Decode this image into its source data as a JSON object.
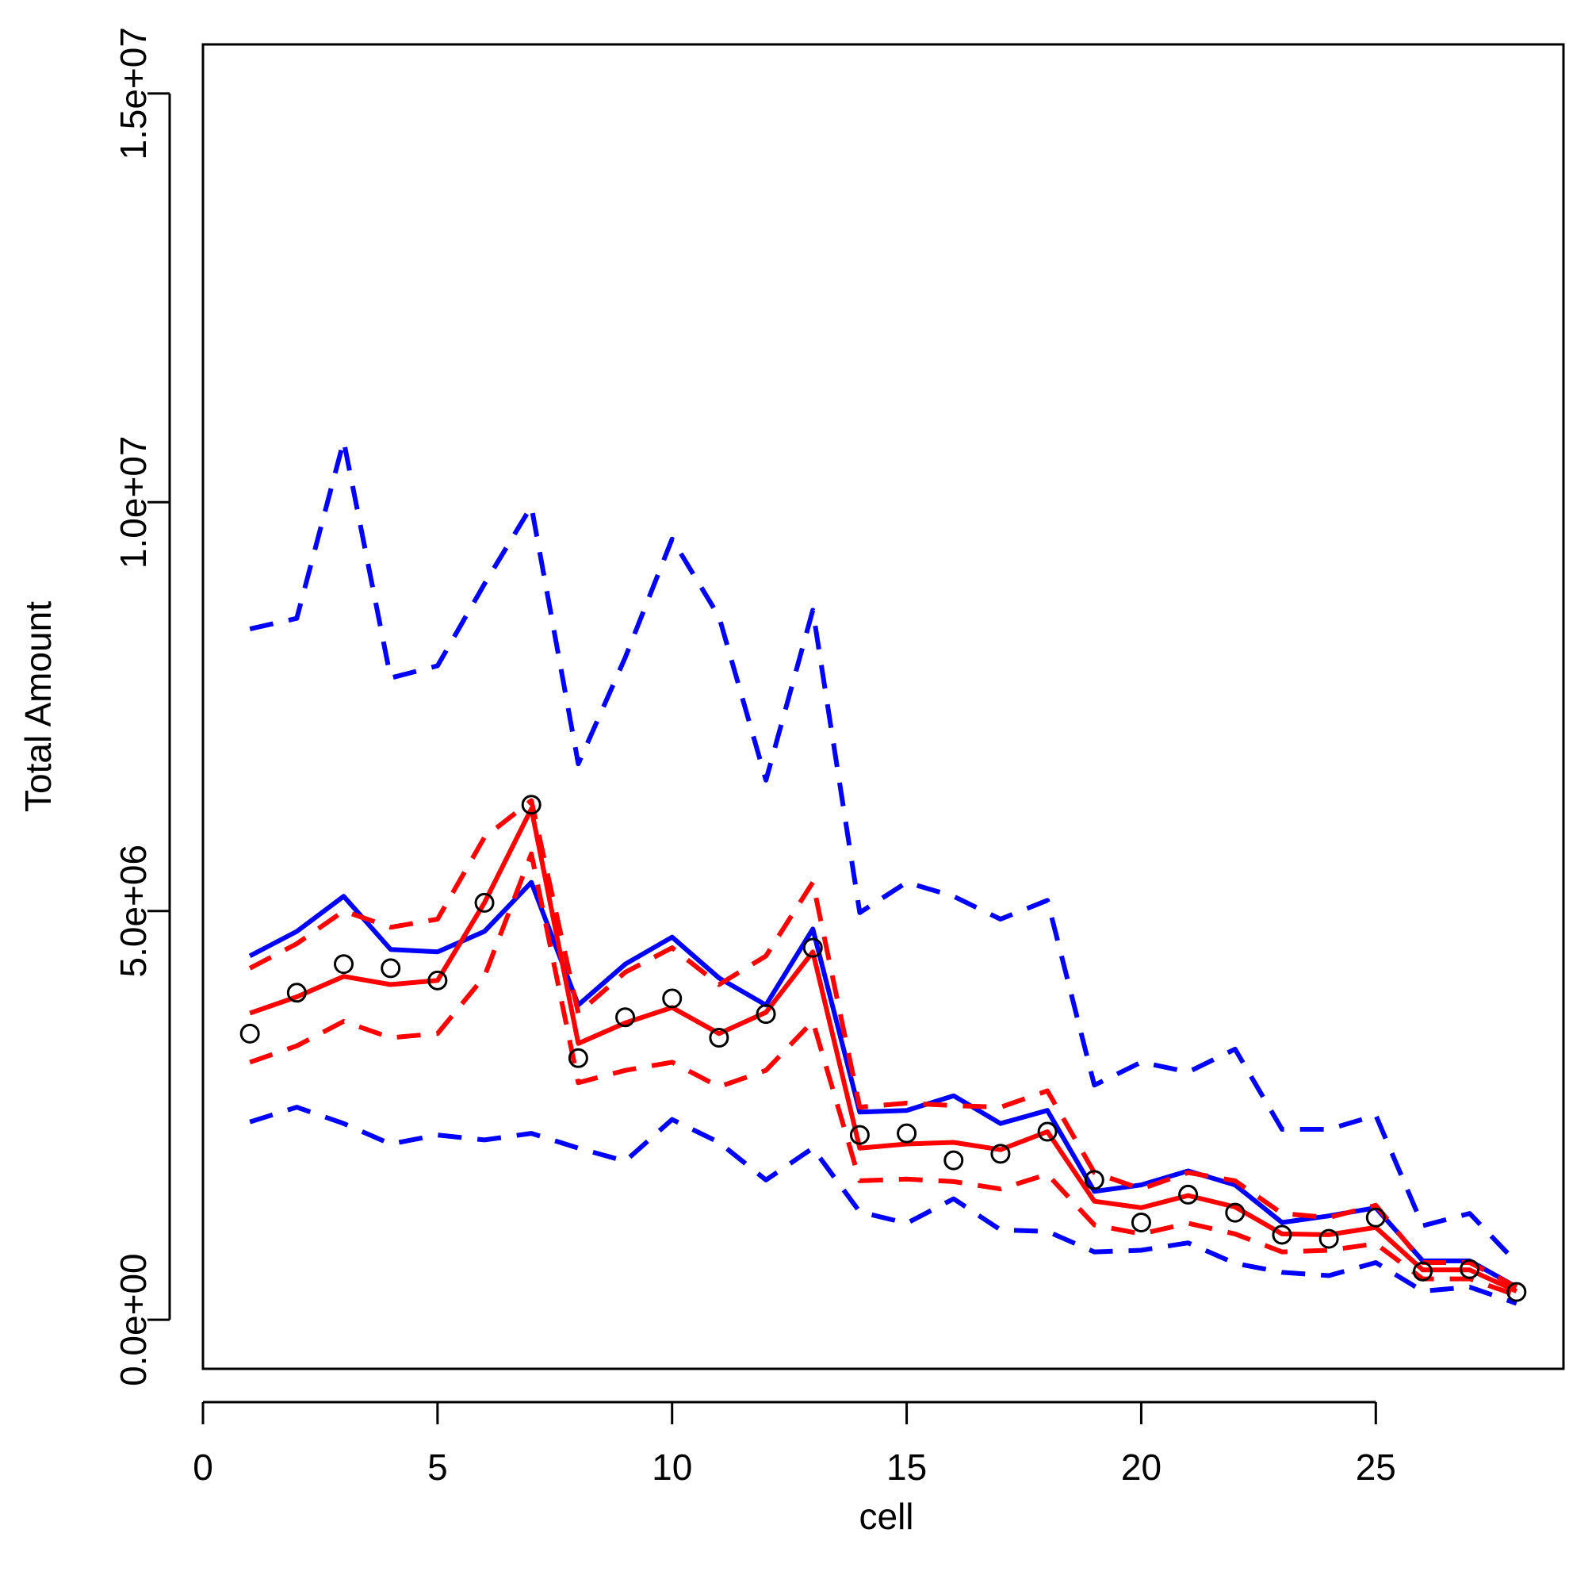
{
  "chart_data": {
    "type": "line",
    "title": "",
    "xlabel": "cell",
    "ylabel": "Total Amount",
    "xlim": [
      0,
      29
    ],
    "ylim": [
      -600000,
      15600000
    ],
    "xticks": [
      0,
      5,
      10,
      15,
      20,
      25
    ],
    "xtick_labels": [
      "0",
      "5",
      "10",
      "15",
      "20",
      "25"
    ],
    "yticks": [
      0,
      5000000,
      10000000,
      15000000
    ],
    "ytick_labels": [
      "0.0e+00",
      "5.0e+06",
      "1.0e+07",
      "1.5e+07"
    ],
    "grid": false,
    "legend": null,
    "x": [
      1,
      2,
      3,
      4,
      5,
      6,
      7,
      8,
      9,
      10,
      11,
      12,
      13,
      14,
      15,
      16,
      17,
      18,
      19,
      20,
      21,
      22,
      23,
      24,
      25,
      26,
      27,
      28
    ],
    "points": {
      "name": "observed",
      "marker": "open-circle",
      "color": "#000000",
      "values": [
        3500000,
        4000000,
        4350000,
        4300000,
        4150000,
        5100000,
        6300000,
        3200000,
        3700000,
        3930000,
        3450000,
        3740000,
        4550000,
        2260000,
        2280000,
        1950000,
        2030000,
        2300000,
        1710000,
        1190000,
        1530000,
        1310000,
        1040000,
        990000,
        1250000,
        590000,
        620000,
        340000
      ]
    },
    "series": [
      {
        "name": "blue-mean",
        "color": "#0000ff",
        "style": "solid",
        "values": [
          4450000,
          4750000,
          5180000,
          4530000,
          4500000,
          4750000,
          5350000,
          3850000,
          4350000,
          4680000,
          4180000,
          3850000,
          4780000,
          2540000,
          2560000,
          2740000,
          2400000,
          2560000,
          1570000,
          1650000,
          1820000,
          1650000,
          1190000,
          1270000,
          1370000,
          720000,
          720000,
          400000
        ]
      },
      {
        "name": "blue-upper",
        "color": "#0000ff",
        "style": "dashed",
        "values": [
          8450000,
          8580000,
          10750000,
          7850000,
          8000000,
          9000000,
          9950000,
          6800000,
          8100000,
          9550000,
          8600000,
          6600000,
          8680000,
          4980000,
          5350000,
          5180000,
          4900000,
          5130000,
          2870000,
          3150000,
          3030000,
          3310000,
          2330000,
          2330000,
          2500000,
          1150000,
          1300000,
          700000
        ]
      },
      {
        "name": "blue-lower",
        "color": "#0000ff",
        "style": "dashed",
        "values": [
          2420000,
          2600000,
          2400000,
          2150000,
          2260000,
          2200000,
          2280000,
          2100000,
          1940000,
          2450000,
          2170000,
          1710000,
          2100000,
          1320000,
          1180000,
          1480000,
          1100000,
          1080000,
          830000,
          850000,
          940000,
          690000,
          580000,
          540000,
          700000,
          350000,
          400000,
          200000
        ]
      },
      {
        "name": "red-mean",
        "color": "#ff0000",
        "style": "solid",
        "values": [
          3750000,
          3950000,
          4200000,
          4100000,
          4150000,
          5100000,
          6250000,
          3380000,
          3630000,
          3820000,
          3500000,
          3760000,
          4500000,
          2100000,
          2150000,
          2170000,
          2080000,
          2300000,
          1450000,
          1370000,
          1520000,
          1380000,
          1050000,
          1040000,
          1130000,
          610000,
          610000,
          350000
        ]
      },
      {
        "name": "red-upper",
        "color": "#ff0000",
        "style": "dashed",
        "values": [
          4300000,
          4600000,
          5000000,
          4800000,
          4900000,
          5900000,
          6350000,
          3750000,
          4250000,
          4550000,
          4100000,
          4450000,
          5350000,
          2600000,
          2650000,
          2620000,
          2600000,
          2800000,
          1800000,
          1600000,
          1800000,
          1700000,
          1300000,
          1250000,
          1400000,
          700000,
          700000,
          400000
        ]
      },
      {
        "name": "red-lower",
        "color": "#ff0000",
        "style": "dashed",
        "values": [
          3150000,
          3350000,
          3650000,
          3450000,
          3500000,
          4200000,
          5700000,
          2900000,
          3050000,
          3150000,
          2850000,
          3050000,
          3650000,
          1700000,
          1720000,
          1690000,
          1600000,
          1780000,
          1160000,
          1050000,
          1180000,
          1050000,
          830000,
          850000,
          930000,
          500000,
          500000,
          300000
        ]
      }
    ]
  }
}
